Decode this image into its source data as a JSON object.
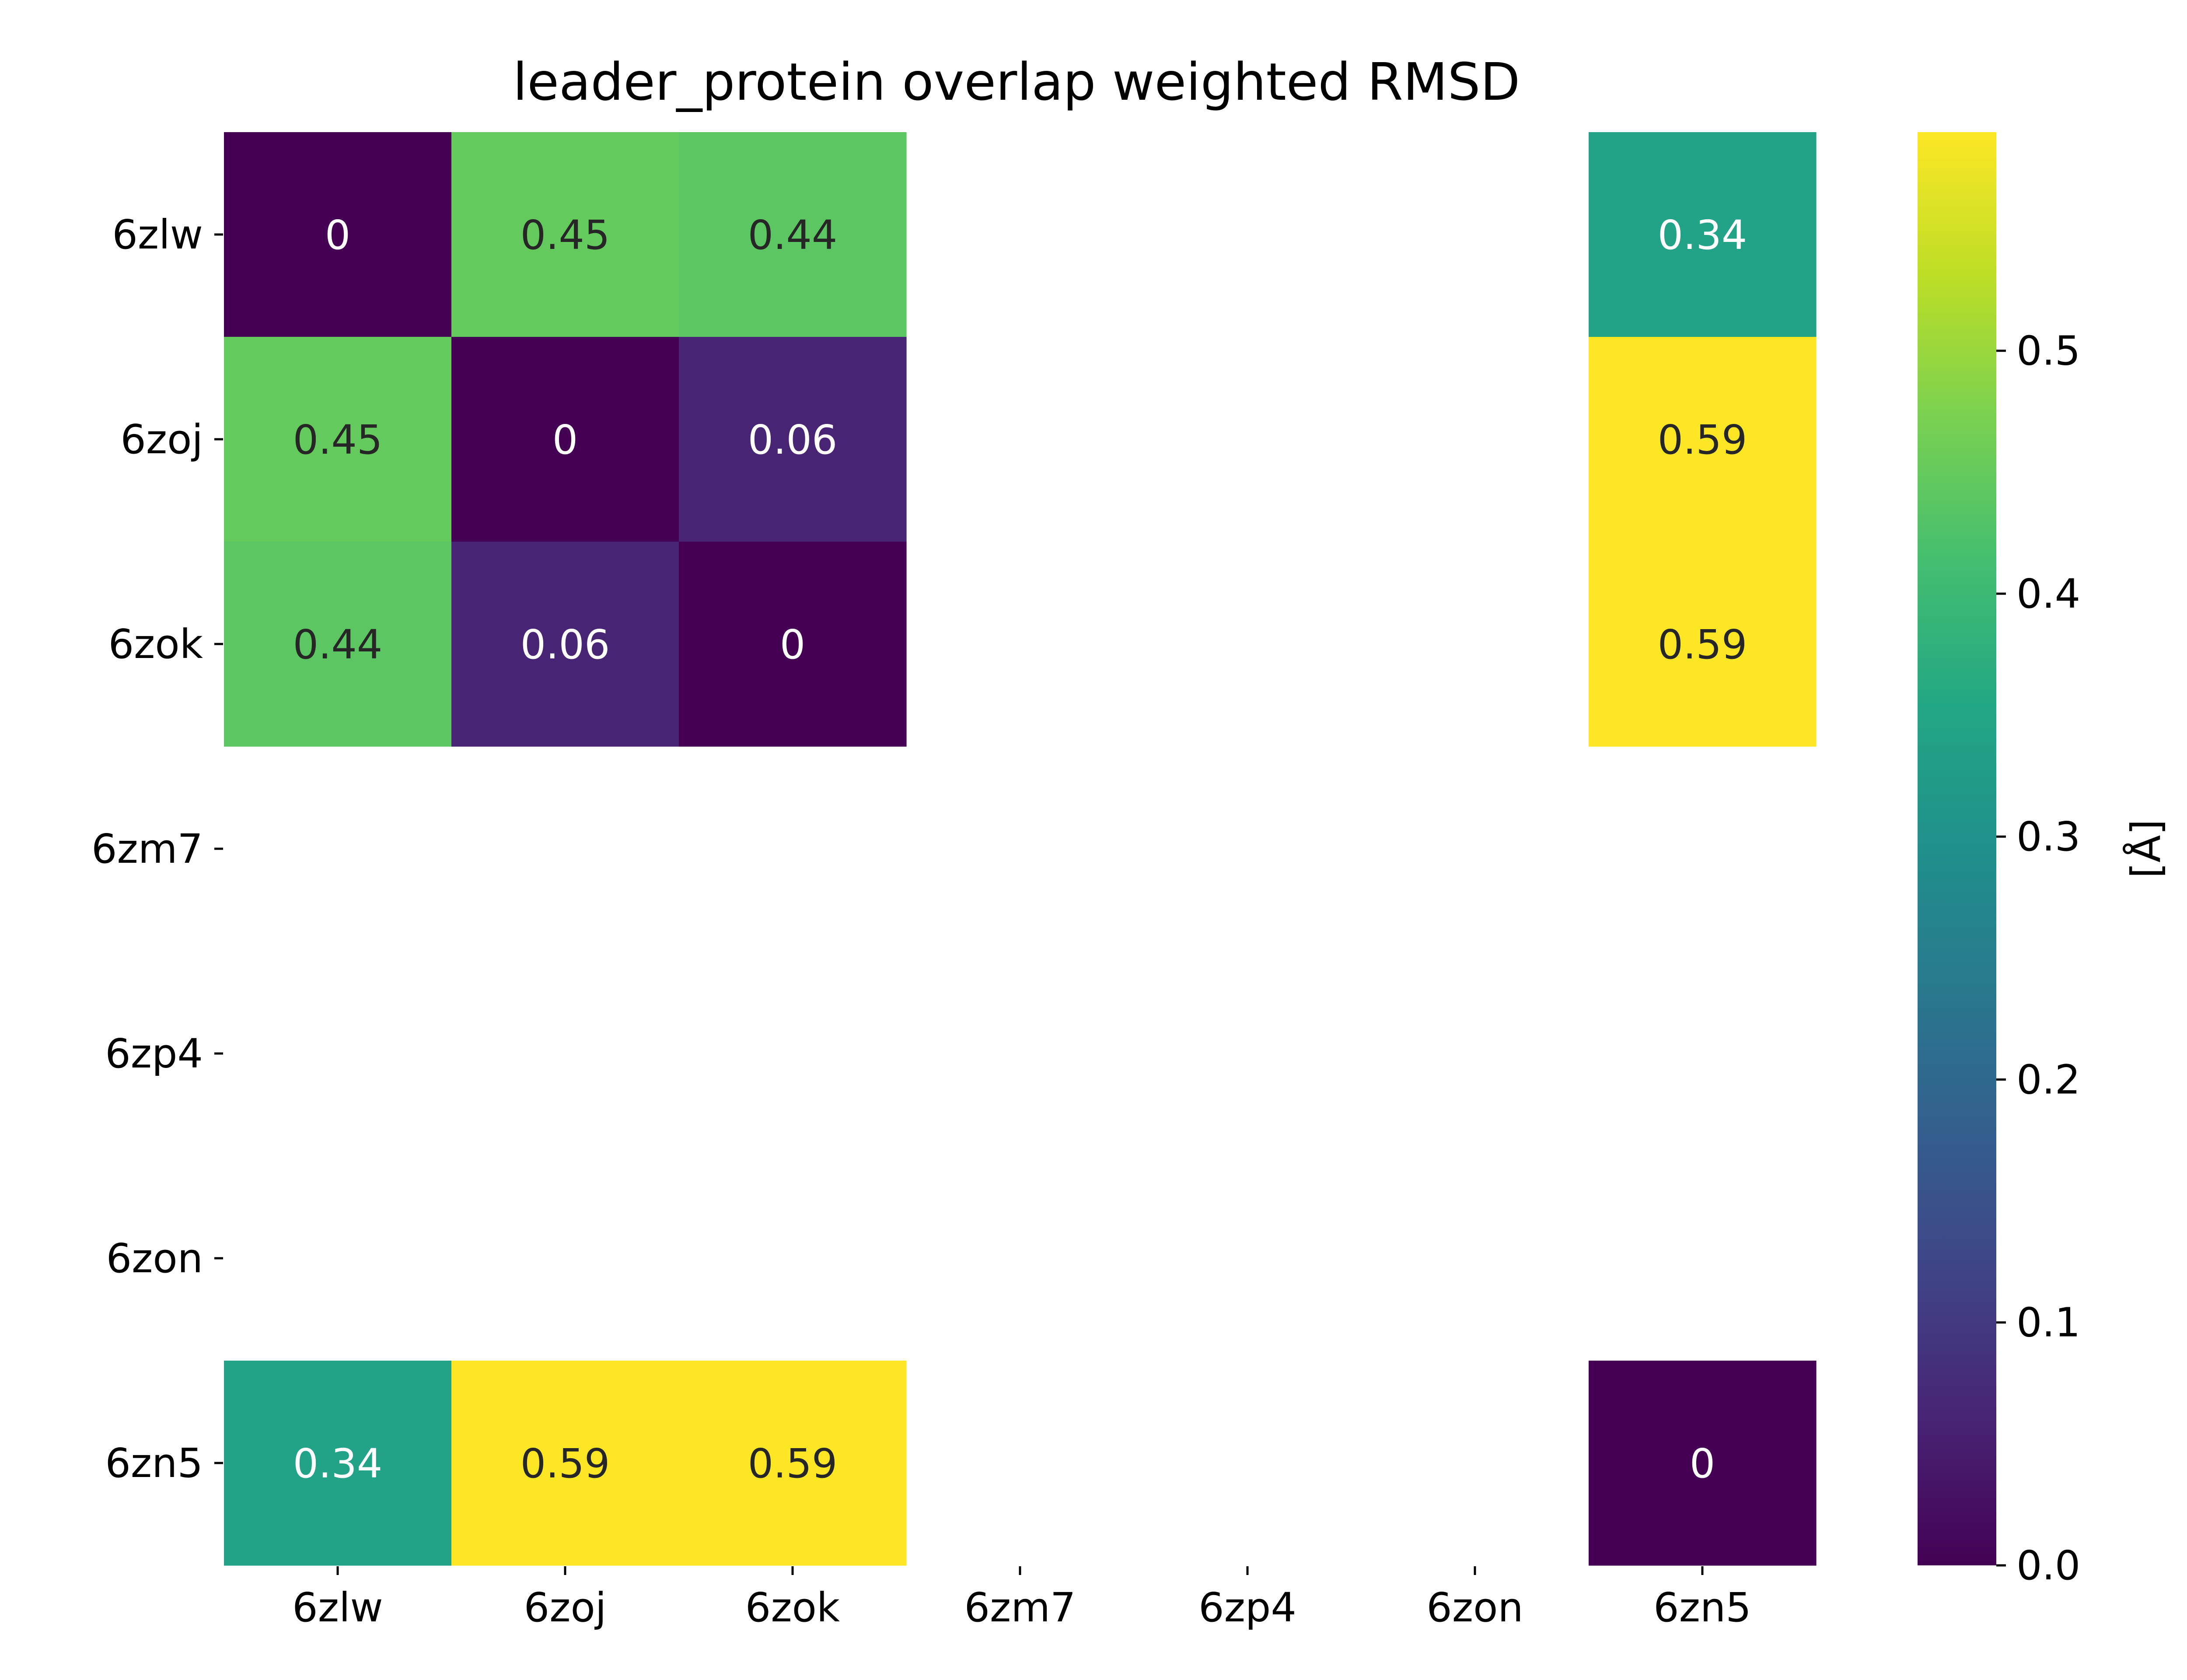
{
  "chart_data": {
    "type": "heatmap",
    "title": "leader_protein overlap weighted RMSD",
    "x_categories": [
      "6zlw",
      "6zoj",
      "6zok",
      "6zm7",
      "6zp4",
      "6zon",
      "6zn5"
    ],
    "y_categories": [
      "6zlw",
      "6zoj",
      "6zok",
      "6zm7",
      "6zp4",
      "6zon",
      "6zn5"
    ],
    "values": [
      [
        0,
        0.45,
        0.44,
        null,
        null,
        null,
        0.34
      ],
      [
        0.45,
        0,
        0.06,
        null,
        null,
        null,
        0.59
      ],
      [
        0.44,
        0.06,
        0,
        null,
        null,
        null,
        0.59
      ],
      [
        null,
        null,
        null,
        null,
        null,
        null,
        null
      ],
      [
        null,
        null,
        null,
        null,
        null,
        null,
        null
      ],
      [
        null,
        null,
        null,
        null,
        null,
        null,
        null
      ],
      [
        0.34,
        0.59,
        0.59,
        null,
        null,
        null,
        0
      ]
    ],
    "annotations": [
      [
        "0",
        "0.45",
        "0.44",
        "",
        "",
        "",
        "0.34"
      ],
      [
        "0.45",
        "0",
        "0.06",
        "",
        "",
        "",
        "0.59"
      ],
      [
        "0.44",
        "0.06",
        "0",
        "",
        "",
        "",
        "0.59"
      ],
      [
        "",
        "",
        "",
        "",
        "",
        "",
        ""
      ],
      [
        "",
        "",
        "",
        "",
        "",
        "",
        ""
      ],
      [
        "",
        "",
        "",
        "",
        "",
        "",
        ""
      ],
      [
        "0.34",
        "0.59",
        "0.59",
        "",
        "",
        "",
        "0"
      ]
    ],
    "colormap": "viridis",
    "color_range": [
      0,
      0.59
    ],
    "colorbar": {
      "label": "[Å]",
      "ticks": [
        0.0,
        0.1,
        0.2,
        0.3,
        0.4,
        0.5
      ],
      "tick_labels": [
        "0.0",
        "0.1",
        "0.2",
        "0.3",
        "0.4",
        "0.5"
      ]
    },
    "grid": false,
    "legend": "colorbar-right"
  }
}
